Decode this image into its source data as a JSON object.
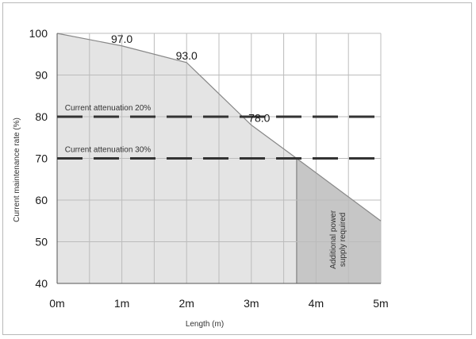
{
  "chart_data": {
    "type": "area",
    "title": "",
    "xlabel": "Length (m)",
    "ylabel": "Current maintenance rate (%)",
    "xlim": [
      0,
      5
    ],
    "ylim": [
      40,
      100
    ],
    "grid": true,
    "x_ticks": [
      {
        "value": 0,
        "label": "0m"
      },
      {
        "value": 1,
        "label": "1m"
      },
      {
        "value": 2,
        "label": "2m"
      },
      {
        "value": 3,
        "label": "3m"
      },
      {
        "value": 4,
        "label": "4m"
      },
      {
        "value": 5,
        "label": "5m"
      }
    ],
    "y_ticks": [
      {
        "value": 40,
        "label": "40"
      },
      {
        "value": 50,
        "label": "50"
      },
      {
        "value": 60,
        "label": "60"
      },
      {
        "value": 70,
        "label": "70"
      },
      {
        "value": 80,
        "label": "80"
      },
      {
        "value": 90,
        "label": "90"
      },
      {
        "value": 100,
        "label": "100"
      }
    ],
    "series": [
      {
        "x": [
          0,
          1,
          2,
          3,
          3.7,
          5
        ],
        "y": [
          100,
          97,
          93,
          78,
          70,
          55
        ]
      }
    ],
    "data_labels": [
      {
        "x": 1,
        "y": 97,
        "label": "97.0"
      },
      {
        "x": 2,
        "y": 93,
        "label": "93.0"
      },
      {
        "x": 3,
        "y": 78,
        "label": "78.0"
      }
    ],
    "reference_lines": [
      {
        "y": 80,
        "label": "Current attenuation 20%"
      },
      {
        "y": 70,
        "label": "Current attenuation 30%"
      }
    ],
    "shaded_region": {
      "x_start": 3.7,
      "label_lines": [
        "Additional power",
        "supply required"
      ]
    },
    "colors": {
      "area_fill": "#e4e4e4",
      "region_fill": "#c6c6c6",
      "line": "#888888",
      "grid": "#bcbcbc",
      "dash": "#333333"
    }
  }
}
